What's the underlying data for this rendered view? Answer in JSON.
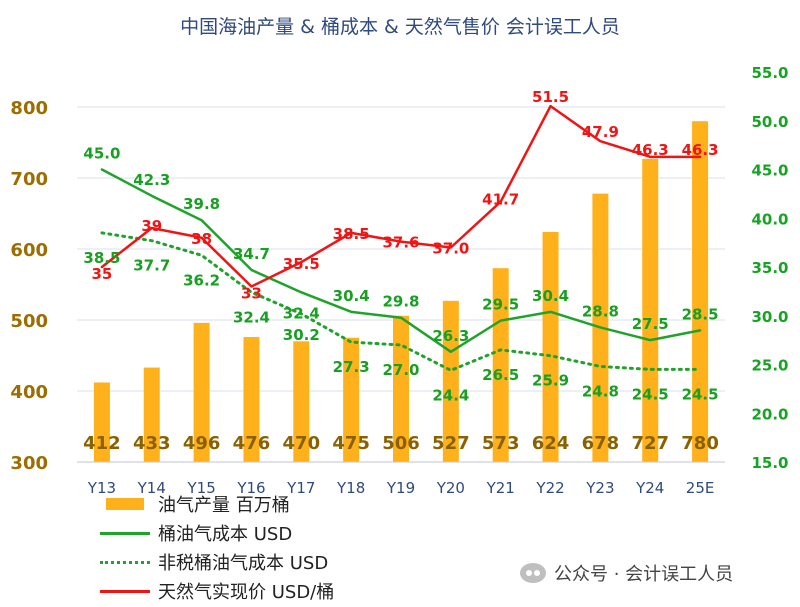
{
  "title": "中国海油产量 & 桶成本 & 天然气售价  会计误工人员",
  "watermark": "公众号 · 会计误工人员",
  "colors": {
    "bar": "#FFB11C",
    "bar_label": "#8A6100",
    "left_axis": "#9C6D00",
    "right_axis": "#17A323",
    "cost_line": "#1FA32B",
    "cost_label": "#19A023",
    "pretax_line": "#1FA32B",
    "gas_line": "#F01515",
    "gas_label": "#F01515",
    "grid": "#D9E1EE",
    "x_tick": "#2F4A7F"
  },
  "chart_data": {
    "type": "bar",
    "categories": [
      "Y13",
      "Y14",
      "Y15",
      "Y16",
      "Y17",
      "Y18",
      "Y19",
      "Y20",
      "Y21",
      "Y22",
      "Y23",
      "Y24",
      "25E"
    ],
    "y_left": {
      "min": 300,
      "max": 800,
      "step": 100,
      "ticks": [
        "300",
        "400",
        "500",
        "600",
        "700",
        "800"
      ]
    },
    "y_right": {
      "min": 15,
      "max": 55,
      "step": 5,
      "ticks": [
        "15.0",
        "20.0",
        "25.0",
        "30.0",
        "35.0",
        "40.0",
        "45.0",
        "50.0",
        "55.0"
      ]
    },
    "grid": true,
    "legend_position": "bottom-left",
    "series": [
      {
        "name": "油气产量 百万桶",
        "type": "bar",
        "axis": "left",
        "values": [
          412,
          433,
          496,
          476,
          470,
          475,
          506,
          527,
          573,
          624,
          678,
          727,
          780
        ],
        "labels": [
          "412",
          "433",
          "496",
          "476",
          "470",
          "475",
          "506",
          "527",
          "573",
          "624",
          "678",
          "727",
          "780"
        ]
      },
      {
        "name": "桶油气成本 USD",
        "type": "line",
        "style": "solid",
        "axis": "right",
        "values": [
          45.0,
          42.3,
          39.8,
          34.7,
          32.4,
          30.4,
          29.8,
          26.3,
          29.5,
          30.4,
          28.8,
          27.5,
          28.5
        ],
        "labels": [
          "45.0",
          "42.3",
          "39.8",
          "34.7",
          "32.4",
          "30.4",
          "29.8",
          "26.3",
          "29.5",
          "30.4",
          "28.8",
          "27.5",
          "28.5"
        ]
      },
      {
        "name": "非税桶油气成本 USD",
        "type": "line",
        "style": "dotted",
        "axis": "right",
        "values": [
          38.5,
          37.7,
          36.2,
          32.4,
          30.2,
          27.3,
          27.0,
          24.4,
          26.5,
          25.9,
          24.8,
          24.5,
          24.5
        ],
        "labels": [
          "38.5",
          "37.7",
          "36.2",
          "32.4",
          "30.2",
          "27.3",
          "27.0",
          "24.4",
          "26.5",
          "25.9",
          "24.8",
          "24.5",
          "24.5"
        ]
      },
      {
        "name": "天然气实现价 USD/桶",
        "type": "line",
        "style": "solid",
        "axis": "right",
        "values": [
          35,
          39,
          38,
          33,
          35.5,
          38.5,
          37.6,
          37.0,
          41.7,
          51.5,
          47.9,
          46.3,
          46.3
        ],
        "labels": [
          "35",
          "39",
          "38",
          "33",
          "35.5",
          "38.5",
          "37.6",
          "37.0",
          "41.7",
          "51.5",
          "47.9",
          "46.3",
          "46.3"
        ]
      }
    ]
  }
}
